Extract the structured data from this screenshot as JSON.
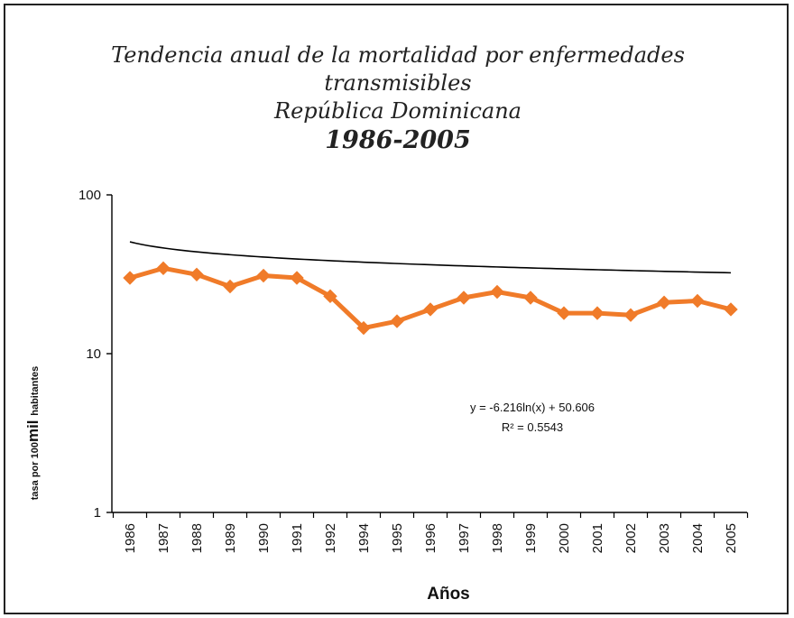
{
  "chart_data": {
    "type": "line",
    "title_lines": [
      "Tendencia anual de la mortalidad por enfermedades",
      "transmisibles",
      "República Dominicana"
    ],
    "title_years": "1986-2005",
    "xlabel": "Años",
    "ylabel_parts": [
      "tasa por 100",
      "mil",
      "habitantes"
    ],
    "y_scale": "log",
    "ylim": [
      1,
      100
    ],
    "y_ticks": [
      1,
      10,
      100
    ],
    "y_tick_labels": [
      "1",
      "10",
      "100"
    ],
    "categories": [
      "1986",
      "1987",
      "1988",
      "1989",
      "1990",
      "1991",
      "1992",
      "1994",
      "1995",
      "1996",
      "1997",
      "1998",
      "1999",
      "2000",
      "2001",
      "2002",
      "2003",
      "2004",
      "2005"
    ],
    "series": [
      {
        "name": "",
        "color": "#f07b29",
        "marker": "diamond",
        "values": [
          30.0,
          34.5,
          31.5,
          26.5,
          31.0,
          30.0,
          23.0,
          14.5,
          16.0,
          19.0,
          22.5,
          24.5,
          22.5,
          18.0,
          18.0,
          17.5,
          21.0,
          21.5,
          19.0
        ]
      }
    ],
    "trendline": {
      "type": "logarithmic",
      "color": "#000000",
      "coef": -6.216,
      "intercept": 50.606,
      "equation_label": "y = -6.216ln(x) + 50.606",
      "r2_label": "R² = 0.5543"
    },
    "grid": false,
    "legend": "none"
  }
}
